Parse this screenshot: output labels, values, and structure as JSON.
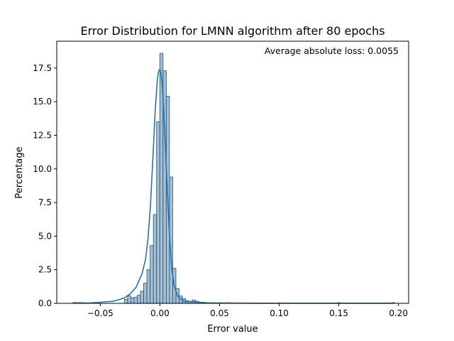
{
  "chart_data": {
    "type": "bar",
    "title": "Error Distribution for LMNN algorithm after 80 epochs",
    "xlabel": "Error value",
    "ylabel": "Percentage",
    "annotation": "Average absolute loss: 0.0055",
    "xlim": [
      -0.0865,
      0.2085
    ],
    "ylim": [
      0,
      19.5
    ],
    "grid": false,
    "legend": "none",
    "x_ticks": [
      -0.05,
      0.0,
      0.05,
      0.1,
      0.15,
      0.2
    ],
    "x_tick_labels": [
      "−0.05",
      "0.00",
      "0.05",
      "0.10",
      "0.15",
      "0.20"
    ],
    "y_ticks": [
      0.0,
      2.5,
      5.0,
      7.5,
      10.0,
      12.5,
      15.0,
      17.5
    ],
    "y_tick_labels": [
      "0.0",
      "2.5",
      "5.0",
      "7.5",
      "10.0",
      "12.5",
      "15.0",
      "17.5"
    ],
    "bin_width": 0.0027,
    "histogram": {
      "bin_starts": [
        -0.073,
        -0.0298,
        -0.0271,
        -0.0244,
        -0.0217,
        -0.019,
        -0.0163,
        -0.0136,
        -0.0109,
        -0.0082,
        -0.0055,
        -0.0028,
        -0.0001,
        0.0026,
        0.0053,
        0.008,
        0.0107,
        0.0134,
        0.0161,
        0.0188,
        0.0215,
        0.0242,
        0.0269,
        0.0296,
        0.0323,
        0.0566,
        0.1484,
        0.1943
      ],
      "values": [
        0.05,
        0.3,
        0.55,
        0.4,
        0.45,
        0.6,
        0.9,
        1.5,
        2.5,
        4.3,
        6.6,
        13.5,
        18.6,
        17.3,
        15.4,
        9.4,
        2.6,
        1.1,
        0.55,
        0.35,
        0.2,
        0.12,
        0.25,
        0.15,
        0.08,
        0.05,
        0.05,
        0.05
      ]
    },
    "kde": {
      "x": [
        -0.073,
        -0.06,
        -0.05,
        -0.04,
        -0.035,
        -0.03,
        -0.025,
        -0.02,
        -0.015,
        -0.012,
        -0.01,
        -0.008,
        -0.006,
        -0.004,
        -0.002,
        -0.001,
        0.0,
        0.001,
        0.002,
        0.003,
        0.004,
        0.006,
        0.008,
        0.01,
        0.012,
        0.015,
        0.02,
        0.025,
        0.03,
        0.04,
        0.06,
        0.08,
        0.1,
        0.15,
        0.195
      ],
      "y": [
        0.05,
        0.02,
        0.08,
        0.15,
        0.25,
        0.4,
        0.7,
        1.2,
        2.2,
        3.3,
        4.8,
        7.2,
        10.6,
        14.3,
        16.8,
        17.3,
        17.4,
        17.0,
        16.2,
        14.7,
        12.8,
        8.8,
        5.1,
        2.5,
        1.3,
        0.5,
        0.15,
        0.12,
        0.1,
        0.04,
        0.02,
        0.01,
        0.01,
        0.01,
        0.01
      ]
    },
    "colors": {
      "bar_fill": "#a6bfd3",
      "bar_edge": "#1f4e6e",
      "kde_line": "#1f77b4",
      "axes": "#000000"
    }
  }
}
